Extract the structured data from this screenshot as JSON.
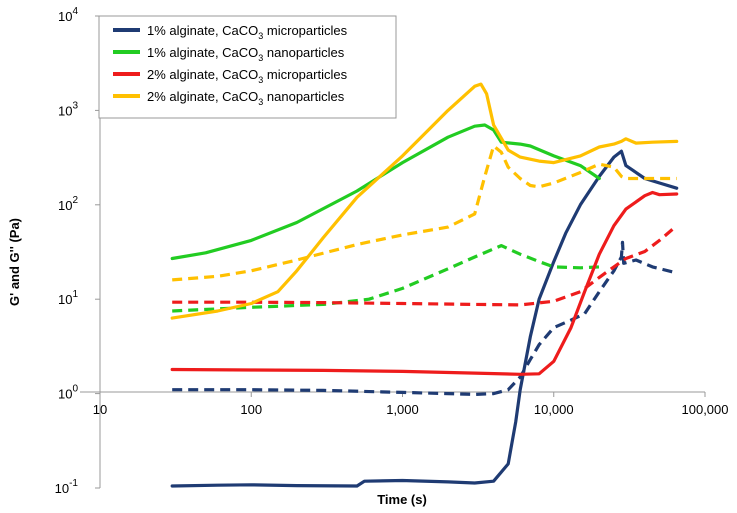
{
  "chart_data": {
    "type": "line",
    "xlabel": "Time (s)",
    "ylabel": "G' and G'' (Pa)",
    "x_scale": "log",
    "y_scale": "log",
    "xlim": [
      10,
      100000
    ],
    "ylim": [
      0.1,
      10000
    ],
    "grid": false,
    "legend_position": "top-left",
    "x_tick_labels": [
      {
        "value": 10,
        "label": "10"
      },
      {
        "value": 100,
        "label": "100"
      },
      {
        "value": 1000,
        "label": "1,000"
      },
      {
        "value": 10000,
        "label": "10,000"
      },
      {
        "value": 100000,
        "label": "100,000"
      }
    ],
    "y_tick_labels": [
      {
        "value": 0.1,
        "base": "10",
        "exp": "-1"
      },
      {
        "value": 1,
        "base": "10",
        "exp": "0"
      },
      {
        "value": 10,
        "base": "10",
        "exp": "1"
      },
      {
        "value": 100,
        "base": "10",
        "exp": "2"
      },
      {
        "value": 1000,
        "base": "10",
        "exp": "3"
      },
      {
        "value": 10000,
        "base": "10",
        "exp": "4"
      }
    ],
    "legend": [
      {
        "text_before": "1% alginate, CaCO",
        "sub": "3",
        "text_after": " microparticles",
        "color": "#1f3b73"
      },
      {
        "text_before": "1% alginate, CaCO",
        "sub": "3",
        "text_after": " nanoparticles",
        "color": "#22cc22"
      },
      {
        "text_before": "2% alginate, CaCO",
        "sub": "3",
        "text_after": " microparticles",
        "color": "#ee1c1c"
      },
      {
        "text_before": "2% alginate, CaCO",
        "sub": "3",
        "text_after": " nanoparticles",
        "color": "#ffc000"
      }
    ],
    "series": [
      {
        "legend_index": 0,
        "modulus": "G'",
        "dashed": false,
        "points": [
          [
            30,
            0.105
          ],
          [
            60,
            0.107
          ],
          [
            100,
            0.108
          ],
          [
            200,
            0.106
          ],
          [
            500,
            0.105
          ],
          [
            560,
            0.118
          ],
          [
            1000,
            0.12
          ],
          [
            2000,
            0.116
          ],
          [
            3000,
            0.113
          ],
          [
            4000,
            0.118
          ],
          [
            5000,
            0.18
          ],
          [
            5600,
            0.5
          ],
          [
            6000,
            1.1
          ],
          [
            7000,
            4
          ],
          [
            8000,
            10
          ],
          [
            10000,
            25
          ],
          [
            12000,
            50
          ],
          [
            15000,
            100
          ],
          [
            20000,
            200
          ],
          [
            25000,
            320
          ],
          [
            28000,
            370
          ],
          [
            30000,
            260
          ],
          [
            40000,
            190
          ],
          [
            50000,
            170
          ],
          [
            65000,
            150
          ]
        ]
      },
      {
        "legend_index": 0,
        "modulus": "G''",
        "dashed": true,
        "points": [
          [
            30,
            1.1
          ],
          [
            100,
            1.1
          ],
          [
            300,
            1.08
          ],
          [
            1000,
            1.03
          ],
          [
            2000,
            1.0
          ],
          [
            3000,
            0.98
          ],
          [
            4000,
            1.0
          ],
          [
            5000,
            1.1
          ],
          [
            6000,
            1.5
          ],
          [
            7000,
            2.3
          ],
          [
            8000,
            3.3
          ],
          [
            10000,
            5
          ],
          [
            13000,
            6
          ],
          [
            16000,
            7
          ],
          [
            20000,
            12
          ],
          [
            25000,
            20
          ],
          [
            28000,
            28
          ],
          [
            28500,
            40
          ],
          [
            29000,
            24
          ],
          [
            35000,
            26
          ],
          [
            45000,
            22
          ],
          [
            65000,
            19
          ]
        ]
      },
      {
        "legend_index": 1,
        "modulus": "G'",
        "dashed": false,
        "points": [
          [
            30,
            27
          ],
          [
            50,
            31
          ],
          [
            100,
            42
          ],
          [
            200,
            65
          ],
          [
            500,
            140
          ],
          [
            1000,
            280
          ],
          [
            2000,
            520
          ],
          [
            3000,
            680
          ],
          [
            3500,
            700
          ],
          [
            4000,
            620
          ],
          [
            4500,
            460
          ],
          [
            6000,
            440
          ],
          [
            7000,
            420
          ],
          [
            10000,
            330
          ],
          [
            15000,
            260
          ],
          [
            20000,
            190
          ]
        ]
      },
      {
        "legend_index": 1,
        "modulus": "G''",
        "dashed": true,
        "points": [
          [
            30,
            7.5
          ],
          [
            100,
            8.2
          ],
          [
            300,
            8.8
          ],
          [
            600,
            10
          ],
          [
            1000,
            13
          ],
          [
            2000,
            21
          ],
          [
            3000,
            28
          ],
          [
            4500,
            37
          ],
          [
            6000,
            30
          ],
          [
            8000,
            25
          ],
          [
            10000,
            22
          ],
          [
            15000,
            21.5
          ],
          [
            20000,
            22
          ]
        ]
      },
      {
        "legend_index": 2,
        "modulus": "G'",
        "dashed": false,
        "points": [
          [
            30,
            1.8
          ],
          [
            100,
            1.78
          ],
          [
            300,
            1.76
          ],
          [
            1000,
            1.72
          ],
          [
            3000,
            1.65
          ],
          [
            6000,
            1.6
          ],
          [
            8000,
            1.62
          ],
          [
            10000,
            2.2
          ],
          [
            13000,
            5
          ],
          [
            16000,
            12
          ],
          [
            20000,
            30
          ],
          [
            25000,
            60
          ],
          [
            30000,
            90
          ],
          [
            40000,
            125
          ],
          [
            45000,
            135
          ],
          [
            50000,
            128
          ],
          [
            65000,
            130
          ]
        ]
      },
      {
        "legend_index": 2,
        "modulus": "G''",
        "dashed": true,
        "points": [
          [
            30,
            9.3
          ],
          [
            100,
            9.3
          ],
          [
            300,
            9.2
          ],
          [
            1000,
            9.0
          ],
          [
            3000,
            8.8
          ],
          [
            6000,
            8.7
          ],
          [
            10000,
            9.5
          ],
          [
            15000,
            12
          ],
          [
            20000,
            17
          ],
          [
            25000,
            22
          ],
          [
            30000,
            27
          ],
          [
            40000,
            32
          ],
          [
            50000,
            42
          ],
          [
            65000,
            60
          ]
        ]
      },
      {
        "legend_index": 3,
        "modulus": "G'",
        "dashed": false,
        "points": [
          [
            30,
            6.3
          ],
          [
            60,
            7.5
          ],
          [
            100,
            9
          ],
          [
            150,
            12
          ],
          [
            200,
            20
          ],
          [
            300,
            45
          ],
          [
            500,
            120
          ],
          [
            1000,
            330
          ],
          [
            2000,
            1000
          ],
          [
            3000,
            1800
          ],
          [
            3300,
            1900
          ],
          [
            3600,
            1500
          ],
          [
            4000,
            700
          ],
          [
            5000,
            380
          ],
          [
            6000,
            320
          ],
          [
            8000,
            290
          ],
          [
            10000,
            280
          ],
          [
            15000,
            330
          ],
          [
            20000,
            410
          ],
          [
            25000,
            440
          ],
          [
            28000,
            470
          ],
          [
            30000,
            500
          ],
          [
            35000,
            450
          ],
          [
            45000,
            460
          ],
          [
            65000,
            470
          ]
        ]
      },
      {
        "legend_index": 3,
        "modulus": "G''",
        "dashed": true,
        "points": [
          [
            30,
            16
          ],
          [
            60,
            17.5
          ],
          [
            100,
            20
          ],
          [
            200,
            26
          ],
          [
            500,
            38
          ],
          [
            1000,
            48
          ],
          [
            2000,
            58
          ],
          [
            3000,
            80
          ],
          [
            3500,
            200
          ],
          [
            4000,
            420
          ],
          [
            4500,
            360
          ],
          [
            5000,
            250
          ],
          [
            6000,
            190
          ],
          [
            7000,
            160
          ],
          [
            8000,
            155
          ],
          [
            10000,
            170
          ],
          [
            15000,
            220
          ],
          [
            20000,
            270
          ],
          [
            25000,
            250
          ],
          [
            28000,
            200
          ],
          [
            30000,
            190
          ],
          [
            45000,
            190
          ],
          [
            65000,
            190
          ]
        ]
      }
    ]
  }
}
